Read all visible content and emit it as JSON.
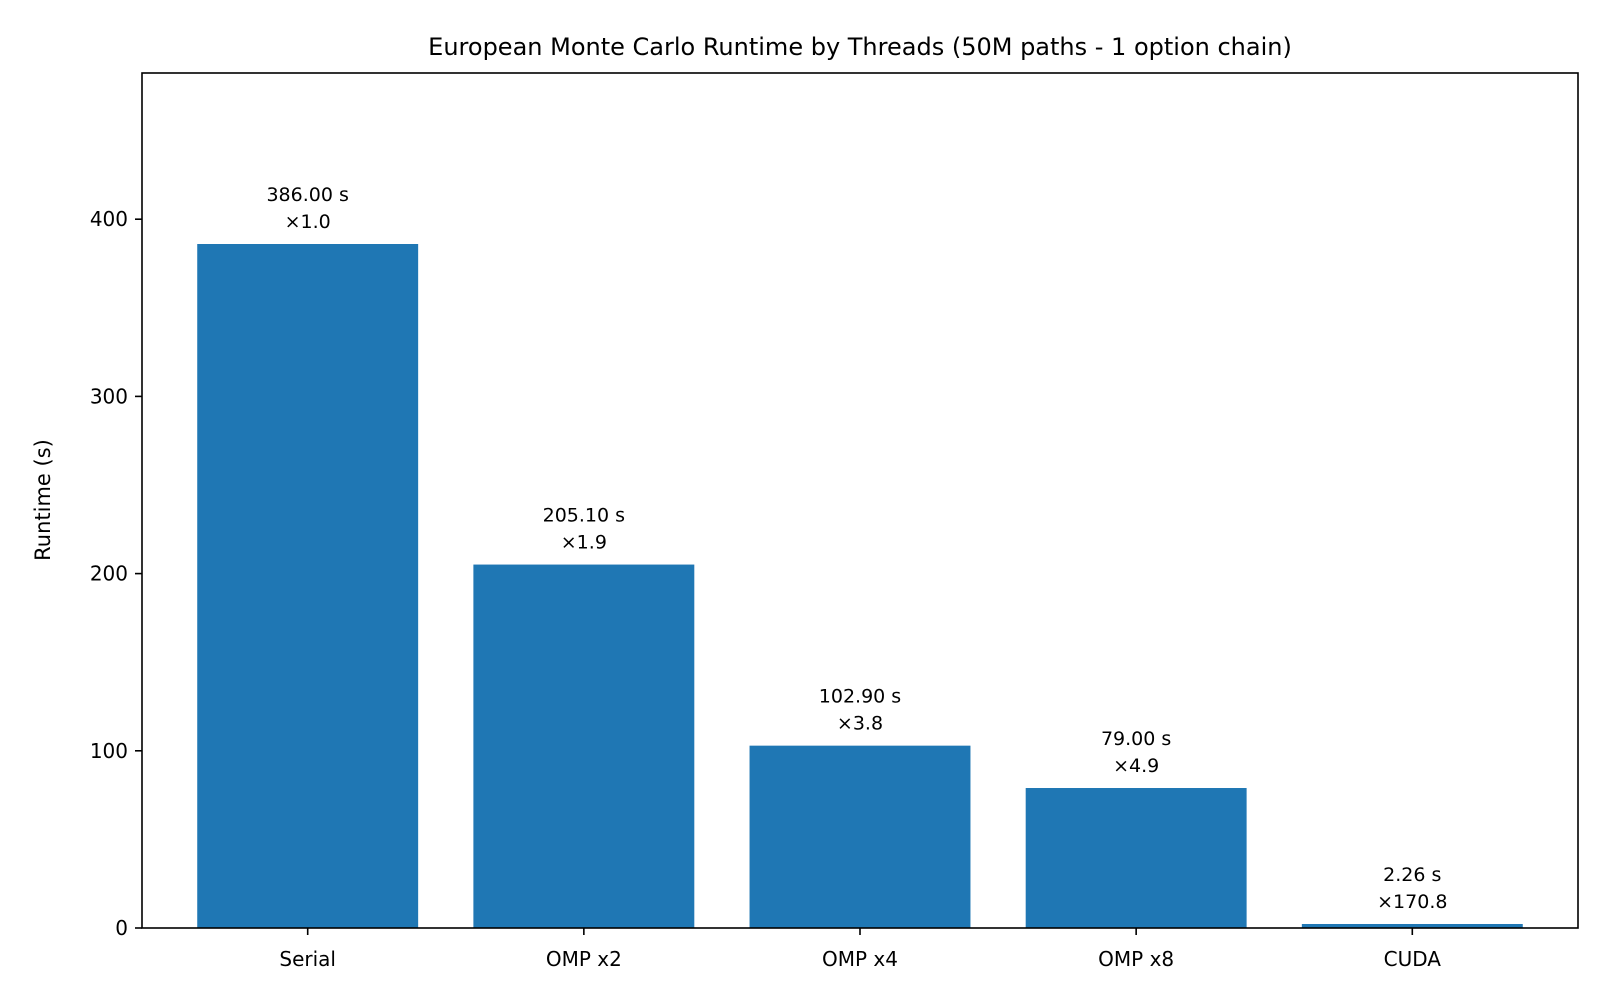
{
  "chart_data": {
    "type": "bar",
    "title": "European Monte Carlo Runtime by Threads (50M paths - 1 option chain)",
    "xlabel": "",
    "ylabel": "Runtime (s)",
    "categories": [
      "Serial",
      "OMP x2",
      "OMP x4",
      "OMP x8",
      "CUDA"
    ],
    "values": [
      386.0,
      205.1,
      102.9,
      79.0,
      2.26
    ],
    "data_labels": [
      {
        "runtime": "386.00 s",
        "speedup": "×1.0"
      },
      {
        "runtime": "205.10 s",
        "speedup": "×1.9"
      },
      {
        "runtime": "102.90 s",
        "speedup": "×3.8"
      },
      {
        "runtime": "79.00 s",
        "speedup": "×4.9"
      },
      {
        "runtime": "2.26 s",
        "speedup": "×170.8"
      }
    ],
    "ylim": [
      0,
      482.5
    ],
    "yticks": [
      0,
      100,
      200,
      300,
      400
    ],
    "grid": false,
    "legend": "none",
    "bar_color": "#1f77b4"
  }
}
